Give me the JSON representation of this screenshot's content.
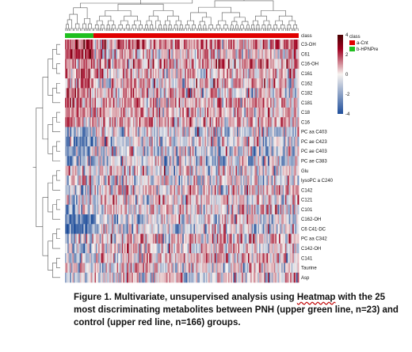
{
  "chart_data": {
    "type": "heatmap",
    "title": "",
    "xlabel": "",
    "ylabel": "",
    "class_label": "class",
    "class_counts": {
      "b-HPNPre": 23,
      "a-Cnt": 166
    },
    "class_legend": {
      "title": "class",
      "entries": [
        {
          "name": "a-Cnt",
          "color": "#e00000"
        },
        {
          "name": "b-HPNPre",
          "color": "#1fbf1f"
        }
      ]
    },
    "color_scale": {
      "ticks": [
        4,
        2,
        0,
        -2,
        -4
      ],
      "range": [
        -4,
        4
      ],
      "colors": {
        "low": "#1f4e9b",
        "mid": "#f7f3f0",
        "high": "#a00020",
        "max": "#4a0000"
      }
    },
    "rows": [
      "C3-OH",
      "C61",
      "C16-OH",
      "C161",
      "C162",
      "C182",
      "C181",
      "C18",
      "C16",
      "PC aa C403",
      "PC ae C423",
      "PC ae C403",
      "PC ae C383",
      "Glu",
      "lysoPC a C240",
      "C142",
      "C121",
      "C101",
      "C162-OH",
      "C6 C41-DC",
      "PC aa C342",
      "C142-OH",
      "C141",
      "Taurine",
      "Asp"
    ],
    "row_tendency": [
      1.2,
      0.5,
      1.0,
      0.6,
      0.4,
      0.5,
      0.6,
      0.7,
      0.6,
      -0.4,
      -0.3,
      -0.3,
      -0.3,
      0.0,
      0.0,
      0.3,
      0.3,
      0.2,
      -0.2,
      -0.3,
      0.3,
      0.3,
      0.4,
      0.1,
      0.0
    ],
    "green_group_tendency": [
      1.8,
      2.5,
      1.6,
      1.2,
      1.4,
      1.2,
      1.1,
      0.9,
      0.8,
      -1.0,
      -1.4,
      -1.5,
      -1.2,
      0.6,
      0.3,
      -0.6,
      -0.8,
      -0.5,
      -2.0,
      -2.4,
      -0.6,
      -0.5,
      -0.7,
      -0.4,
      -0.3
    ]
  },
  "caption": {
    "prefix": "Figure 1. Multivariate, unsupervised analysis using ",
    "highlight": "Heatmap",
    "suffix": " with the 25 most discriminating metabolites between PNH (upper green line, n=23) and control (upper red line, n=166) groups."
  }
}
